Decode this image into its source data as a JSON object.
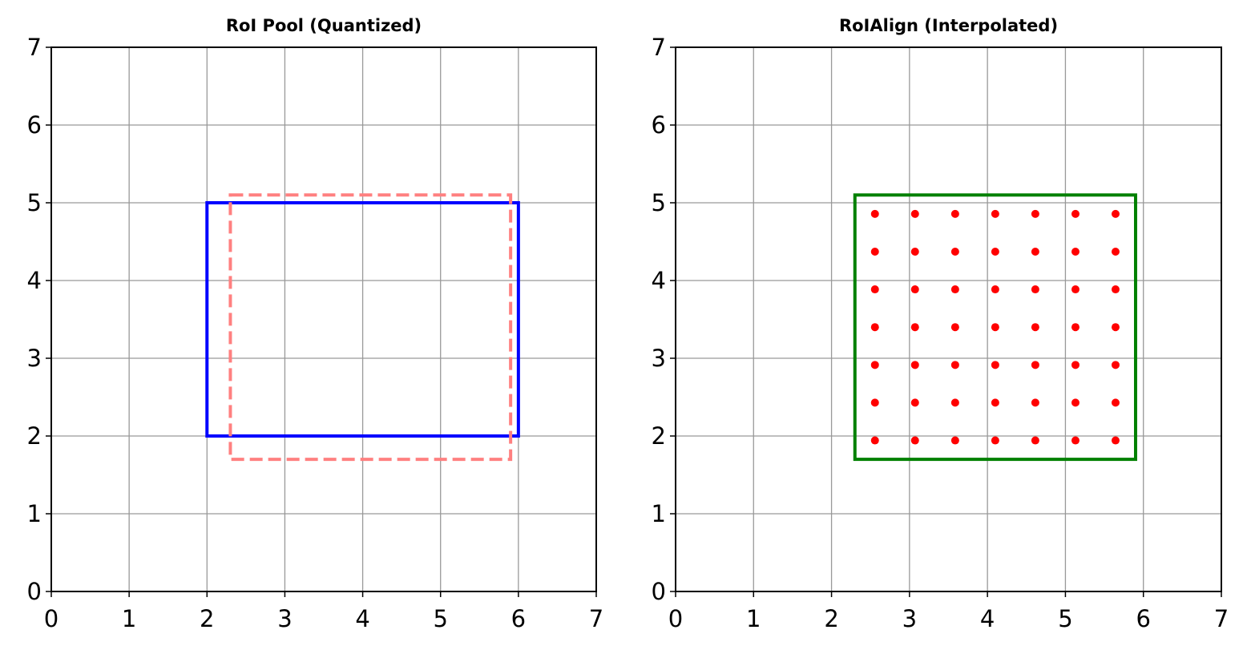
{
  "chart_data": [
    {
      "type": "rectangle",
      "title": "RoI Pool (Quantized)",
      "xlim": [
        0,
        7
      ],
      "ylim": [
        0,
        7
      ],
      "xticks": [
        0,
        1,
        2,
        3,
        4,
        5,
        6,
        7
      ],
      "yticks": [
        0,
        1,
        2,
        3,
        4,
        5,
        6,
        7
      ],
      "grid": true,
      "rectangles": [
        {
          "x": [
            2,
            6
          ],
          "y": [
            2,
            5
          ],
          "color": "#0000ff",
          "style": "solid"
        },
        {
          "x": [
            2.3,
            5.9
          ],
          "y": [
            1.7,
            5.1
          ],
          "color": "#ff8080",
          "style": "dashed"
        }
      ]
    },
    {
      "type": "scatter",
      "title": "RoIAlign (Interpolated)",
      "xlim": [
        0,
        7
      ],
      "ylim": [
        0,
        7
      ],
      "xticks": [
        0,
        1,
        2,
        3,
        4,
        5,
        6,
        7
      ],
      "yticks": [
        0,
        1,
        2,
        3,
        4,
        5,
        6,
        7
      ],
      "grid": true,
      "rectangles": [
        {
          "x": [
            2.3,
            5.9
          ],
          "y": [
            1.7,
            5.1
          ],
          "color": "#008000",
          "style": "solid"
        }
      ],
      "color": "#ff0000",
      "x": [
        2.557,
        3.071,
        3.586,
        4.1,
        4.614,
        5.129,
        5.643,
        2.557,
        3.071,
        3.586,
        4.1,
        4.614,
        5.129,
        5.643,
        2.557,
        3.071,
        3.586,
        4.1,
        4.614,
        5.129,
        5.643,
        2.557,
        3.071,
        3.586,
        4.1,
        4.614,
        5.129,
        5.643,
        2.557,
        3.071,
        3.586,
        4.1,
        4.614,
        5.129,
        5.643,
        2.557,
        3.071,
        3.586,
        4.1,
        4.614,
        5.129,
        5.643,
        2.557,
        3.071,
        3.586,
        4.1,
        4.614,
        5.129,
        5.643
      ],
      "y": [
        1.943,
        1.943,
        1.943,
        1.943,
        1.943,
        1.943,
        1.943,
        2.429,
        2.429,
        2.429,
        2.429,
        2.429,
        2.429,
        2.429,
        2.914,
        2.914,
        2.914,
        2.914,
        2.914,
        2.914,
        2.914,
        3.4,
        3.4,
        3.4,
        3.4,
        3.4,
        3.4,
        3.4,
        3.886,
        3.886,
        3.886,
        3.886,
        3.886,
        3.886,
        3.886,
        4.371,
        4.371,
        4.371,
        4.371,
        4.371,
        4.371,
        4.371,
        4.857,
        4.857,
        4.857,
        4.857,
        4.857,
        4.857,
        4.857
      ]
    }
  ]
}
